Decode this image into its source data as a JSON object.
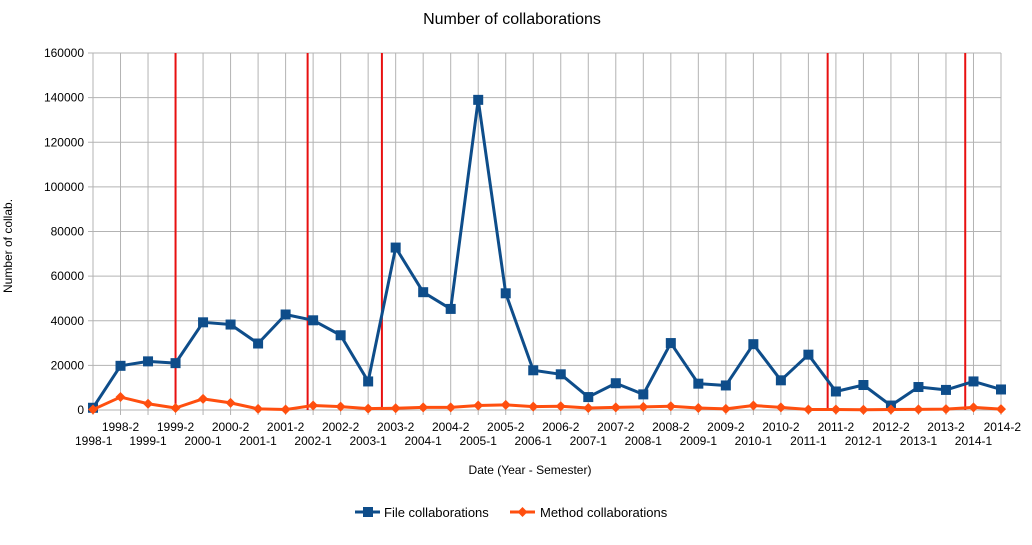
{
  "chart_data": {
    "type": "line",
    "title": "Number of collaborations",
    "xlabel": "Date (Year - Semester)",
    "ylabel": "Number of collab.",
    "ylim": [
      0,
      160000
    ],
    "yticks": [
      0,
      20000,
      40000,
      60000,
      80000,
      100000,
      120000,
      140000,
      160000
    ],
    "grid": true,
    "legend_position": "bottom",
    "categories": [
      "1998-1",
      "1998-2",
      "1999-1",
      "1999-2",
      "2000-1",
      "2000-2",
      "2001-1",
      "2001-2",
      "2002-1",
      "2002-2",
      "2003-1",
      "2003-2",
      "2004-1",
      "2004-2",
      "2005-1",
      "2005-2",
      "2006-1",
      "2006-2",
      "2007-1",
      "2007-2",
      "2008-1",
      "2008-2",
      "2009-1",
      "2009-2",
      "2010-1",
      "2010-2",
      "2011-1",
      "2011-2",
      "2012-1",
      "2012-2",
      "2013-1",
      "2013-2",
      "2014-1",
      "2014-2"
    ],
    "series": [
      {
        "name": "File collaborations",
        "color": "#0e4d8a",
        "marker": "square",
        "values": [
          1000,
          19800,
          21800,
          21000,
          39300,
          38300,
          29800,
          42800,
          40200,
          33500,
          12800,
          72800,
          52800,
          45300,
          139000,
          52300,
          17800,
          16000,
          5800,
          12000,
          7000,
          30000,
          11800,
          11000,
          29500,
          13300,
          24800,
          8300,
          11200,
          2000,
          10300,
          9000,
          12800,
          9200
        ]
      },
      {
        "name": "Method collaborations",
        "color": "#ff4f0f",
        "marker": "diamond",
        "values": [
          200,
          5800,
          2800,
          900,
          5000,
          3200,
          500,
          200,
          2000,
          1500,
          600,
          800,
          1200,
          1200,
          2000,
          2300,
          1500,
          1700,
          900,
          1200,
          1400,
          1700,
          900,
          500,
          2000,
          1200,
          200,
          200,
          100,
          200,
          300,
          400,
          1200,
          400
        ]
      }
    ],
    "vertical_lines": {
      "color": "#e81010",
      "positions": [
        3.0,
        7.8,
        10.5,
        26.7,
        31.7
      ]
    }
  }
}
